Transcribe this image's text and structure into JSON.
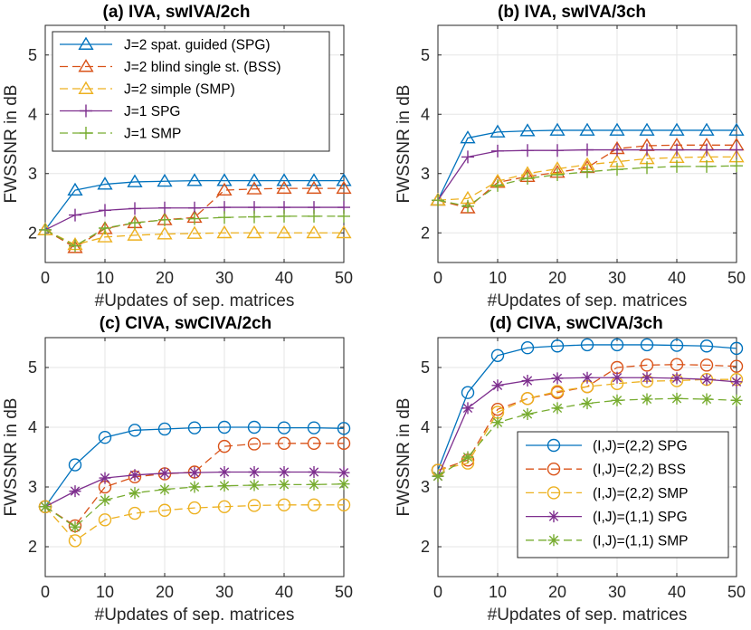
{
  "colors": {
    "spg": "#0072BD",
    "bss": "#D95319",
    "smp": "#EDB120",
    "j1spg": "#7E2F8E",
    "j1smp": "#77AC30",
    "grid": "#e6e6e6",
    "axis": "#262626"
  },
  "chart_data": [
    {
      "id": "a",
      "type": "line",
      "title": "(a) IVA, swIVA/2ch",
      "xlabel": "#Updates of sep. matrices",
      "ylabel": "FWSSNR in dB",
      "xlim": [
        0,
        50
      ],
      "ylim": [
        1.5,
        5.5
      ],
      "xticks": [
        "0",
        "10",
        "20",
        "30",
        "40",
        "50"
      ],
      "yticks": [
        "2",
        "3",
        "4",
        "5"
      ],
      "x": [
        0,
        5,
        10,
        15,
        20,
        25,
        30,
        35,
        40,
        45,
        50
      ],
      "legend_position": "top-left",
      "series": [
        {
          "name": "J=2 spat. guided (SPG)",
          "color_key": "spg",
          "marker": "triangle",
          "dash": "solid",
          "values": [
            2.05,
            2.72,
            2.82,
            2.86,
            2.87,
            2.88,
            2.88,
            2.88,
            2.88,
            2.88,
            2.88
          ]
        },
        {
          "name": "J=2 blind single st. (BSS)",
          "color_key": "bss",
          "marker": "triangle",
          "dash": "dashed",
          "values": [
            2.05,
            1.75,
            2.07,
            2.17,
            2.22,
            2.26,
            2.72,
            2.74,
            2.75,
            2.75,
            2.75
          ]
        },
        {
          "name": "J=2 simple (SMP)",
          "color_key": "smp",
          "marker": "triangle",
          "dash": "dashed",
          "values": [
            2.05,
            1.8,
            1.93,
            1.96,
            1.98,
            1.99,
            2.0,
            2.0,
            2.0,
            2.0,
            2.0
          ]
        },
        {
          "name": "J=1 SPG",
          "color_key": "j1spg",
          "marker": "plus",
          "dash": "solid",
          "values": [
            2.05,
            2.3,
            2.38,
            2.41,
            2.42,
            2.42,
            2.43,
            2.43,
            2.43,
            2.43,
            2.43
          ]
        },
        {
          "name": "J=1 SMP",
          "color_key": "j1smp",
          "marker": "plus",
          "dash": "dashed",
          "values": [
            2.05,
            1.78,
            2.08,
            2.17,
            2.22,
            2.24,
            2.26,
            2.27,
            2.28,
            2.28,
            2.28
          ]
        }
      ]
    },
    {
      "id": "b",
      "type": "line",
      "title": "(b) IVA, swIVA/3ch",
      "xlabel": "#Updates of sep. matrices",
      "ylabel": "FWSSNR in dB",
      "xlim": [
        0,
        50
      ],
      "ylim": [
        1.5,
        5.5
      ],
      "xticks": [
        "0",
        "10",
        "20",
        "30",
        "40",
        "50"
      ],
      "yticks": [
        "2",
        "3",
        "4",
        "5"
      ],
      "x": [
        0,
        5,
        10,
        15,
        20,
        25,
        30,
        35,
        40,
        45,
        50
      ],
      "series": [
        {
          "name": "J=2 spat. guided (SPG)",
          "color_key": "spg",
          "marker": "triangle",
          "dash": "solid",
          "values": [
            2.55,
            3.6,
            3.7,
            3.72,
            3.73,
            3.73,
            3.73,
            3.73,
            3.73,
            3.73,
            3.73
          ]
        },
        {
          "name": "J=2 blind single st. (BSS)",
          "color_key": "bss",
          "marker": "triangle",
          "dash": "dashed",
          "values": [
            2.55,
            2.42,
            2.85,
            2.95,
            3.02,
            3.1,
            3.42,
            3.47,
            3.48,
            3.48,
            3.48
          ]
        },
        {
          "name": "J=2 simple (SMP)",
          "color_key": "smp",
          "marker": "triangle",
          "dash": "dashed",
          "values": [
            2.55,
            2.58,
            2.87,
            3.0,
            3.08,
            3.15,
            3.2,
            3.25,
            3.27,
            3.28,
            3.28
          ]
        },
        {
          "name": "J=1 SPG",
          "color_key": "j1spg",
          "marker": "plus",
          "dash": "solid",
          "values": [
            2.55,
            3.28,
            3.38,
            3.39,
            3.39,
            3.4,
            3.4,
            3.4,
            3.4,
            3.4,
            3.4
          ]
        },
        {
          "name": "J=1 SMP",
          "color_key": "j1smp",
          "marker": "plus",
          "dash": "dashed",
          "values": [
            2.55,
            2.45,
            2.8,
            2.92,
            2.98,
            3.03,
            3.07,
            3.1,
            3.12,
            3.12,
            3.13
          ]
        }
      ]
    },
    {
      "id": "c",
      "type": "line",
      "title": "(c) CIVA, swCIVA/2ch",
      "xlabel": "#Updates of sep. matrices",
      "ylabel": "FWSSNR in dB",
      "xlim": [
        0,
        50
      ],
      "ylim": [
        1.5,
        5.5
      ],
      "xticks": [
        "0",
        "10",
        "20",
        "30",
        "40",
        "50"
      ],
      "yticks": [
        "2",
        "3",
        "4",
        "5"
      ],
      "x": [
        0,
        5,
        10,
        15,
        20,
        25,
        30,
        35,
        40,
        45,
        50
      ],
      "series": [
        {
          "name": "(I,J)=(2,2) SPG",
          "color_key": "spg",
          "marker": "circle",
          "dash": "solid",
          "values": [
            2.67,
            3.37,
            3.83,
            3.95,
            3.97,
            3.99,
            4.0,
            4.0,
            3.99,
            3.99,
            3.98
          ]
        },
        {
          "name": "(I,J)=(2,2) BSS",
          "color_key": "bss",
          "marker": "circle",
          "dash": "dashed",
          "values": [
            2.67,
            2.35,
            3.0,
            3.17,
            3.22,
            3.25,
            3.68,
            3.72,
            3.73,
            3.73,
            3.73
          ]
        },
        {
          "name": "(I,J)=(2,2) SMP",
          "color_key": "smp",
          "marker": "circle",
          "dash": "dashed",
          "values": [
            2.67,
            2.1,
            2.45,
            2.56,
            2.61,
            2.65,
            2.67,
            2.69,
            2.7,
            2.7,
            2.7
          ]
        },
        {
          "name": "(I,J)=(1,1) SPG",
          "color_key": "j1spg",
          "marker": "asterisk",
          "dash": "solid",
          "values": [
            2.67,
            2.93,
            3.15,
            3.2,
            3.23,
            3.24,
            3.25,
            3.25,
            3.25,
            3.25,
            3.24
          ]
        },
        {
          "name": "(I,J)=(1,1) SMP",
          "color_key": "j1smp",
          "marker": "asterisk",
          "dash": "dashed",
          "values": [
            2.67,
            2.33,
            2.78,
            2.9,
            2.96,
            3.0,
            3.02,
            3.03,
            3.04,
            3.04,
            3.05
          ]
        }
      ]
    },
    {
      "id": "d",
      "type": "line",
      "title": "(d) CIVA, swCIVA/3ch",
      "xlabel": "#Updates of sep. matrices",
      "ylabel": "FWSSNR in dB",
      "xlim": [
        0,
        50
      ],
      "ylim": [
        1.5,
        5.5
      ],
      "xticks": [
        "0",
        "10",
        "20",
        "30",
        "40",
        "50"
      ],
      "yticks": [
        "2",
        "3",
        "4",
        "5"
      ],
      "x": [
        0,
        5,
        10,
        15,
        20,
        25,
        30,
        35,
        40,
        45,
        50
      ],
      "legend_position": "bottom-right",
      "series": [
        {
          "name": "(I,J)=(2,2) SPG",
          "color_key": "spg",
          "marker": "circle",
          "dash": "solid",
          "values": [
            3.28,
            4.58,
            5.2,
            5.33,
            5.36,
            5.38,
            5.38,
            5.38,
            5.37,
            5.36,
            5.32
          ]
        },
        {
          "name": "(I,J)=(2,2) BSS",
          "color_key": "bss",
          "marker": "circle",
          "dash": "dashed",
          "values": [
            3.28,
            3.45,
            4.3,
            4.48,
            4.58,
            4.68,
            5.0,
            5.04,
            5.05,
            5.04,
            5.02
          ]
        },
        {
          "name": "(I,J)=(2,2) SMP",
          "color_key": "smp",
          "marker": "circle",
          "dash": "dashed",
          "values": [
            3.28,
            3.4,
            4.25,
            4.48,
            4.6,
            4.68,
            4.73,
            4.77,
            4.78,
            4.8,
            4.8
          ]
        },
        {
          "name": "(I,J)=(1,1) SPG",
          "color_key": "j1spg",
          "marker": "asterisk",
          "dash": "solid",
          "values": [
            3.18,
            4.32,
            4.7,
            4.78,
            4.82,
            4.83,
            4.83,
            4.83,
            4.82,
            4.8,
            4.76
          ]
        },
        {
          "name": "(I,J)=(1,1) SMP",
          "color_key": "j1smp",
          "marker": "asterisk",
          "dash": "dashed",
          "values": [
            3.18,
            3.5,
            4.08,
            4.22,
            4.32,
            4.4,
            4.45,
            4.47,
            4.48,
            4.47,
            4.45
          ]
        }
      ]
    }
  ]
}
